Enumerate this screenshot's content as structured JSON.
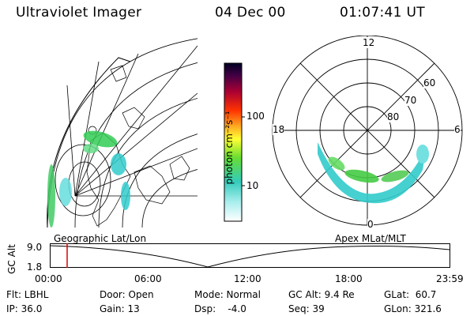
{
  "header": {
    "instrument": "Ultraviolet Imager",
    "date": "04 Dec 00",
    "time": "01:07:41 UT"
  },
  "colorbar": {
    "unit_label": "photon cm⁻²s⁻¹",
    "ticks": [
      "100",
      "10"
    ]
  },
  "polar_plot": {
    "mlt_labels": [
      "12",
      "18",
      "6",
      "0"
    ],
    "lat_labels": [
      "60",
      "70",
      "80"
    ]
  },
  "projection_labels": {
    "left": "Geographic Lat/Lon",
    "right": "Apex MLat/MLT"
  },
  "altitude_plot": {
    "axis_label": "GC Alt",
    "y_ticks": [
      "9.0",
      "1.8"
    ],
    "x_ticks": [
      "00:00",
      "06:00",
      "12:00",
      "18:00",
      "23:59"
    ],
    "marker_time": "01:07"
  },
  "info": {
    "flt": "Flt: LBHL",
    "ip": "IP: 36.0",
    "door": "Door: Open",
    "gain": "Gain: 13",
    "mode": "Mode: Normal",
    "dsp": "Dsp:    -4.0",
    "gc_alt": "GC Alt: 9.4 Re",
    "seq": "Seq: 39",
    "glat": "GLat:  60.7",
    "glon": "GLon: 321.6"
  },
  "colors": {
    "aurora_green": "#33cc33",
    "aurora_cyan": "#33cccc",
    "marker_red": "#dd0000"
  }
}
